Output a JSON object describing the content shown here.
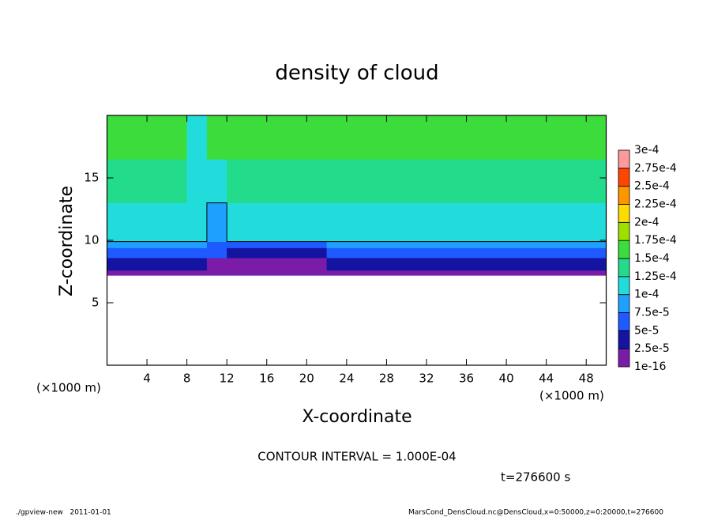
{
  "chart_data": {
    "type": "contourf",
    "title": "density of cloud",
    "xlabel": "X-coordinate",
    "ylabel": "Z-coordinate",
    "x_unit": "(×1000 m)",
    "y_unit": "(×1000 m)",
    "xlim": [
      0,
      50
    ],
    "ylim": [
      0,
      20
    ],
    "xticks": [
      4,
      8,
      12,
      16,
      20,
      24,
      28,
      32,
      36,
      40,
      44,
      48
    ],
    "yticks": [
      5,
      10,
      15
    ],
    "x_bins": [
      0,
      2,
      4,
      6,
      8,
      10,
      12,
      14,
      16,
      18,
      20,
      22,
      24,
      26,
      28,
      30,
      32,
      34,
      36,
      38,
      40,
      42,
      44,
      46,
      48,
      50
    ],
    "z_bins": [
      7.2,
      7.6,
      8.6,
      9.4,
      9.9,
      13,
      16.5,
      20
    ],
    "values": [
      [
        1e-05,
        1e-05,
        1e-05,
        1e-05,
        1e-05,
        1e-05,
        1e-05,
        1e-05,
        1e-05,
        1e-05,
        1e-05,
        1e-05,
        1e-05,
        1e-05,
        1e-05,
        1e-05,
        1e-05,
        1e-05,
        1e-05,
        1e-05,
        1e-05,
        1e-05,
        1e-05,
        1e-05,
        1e-05
      ],
      [
        3.5e-05,
        3.5e-05,
        3.5e-05,
        3.5e-05,
        3.5e-05,
        1e-05,
        1e-05,
        1e-05,
        1e-05,
        1e-05,
        1e-05,
        3.5e-05,
        3.5e-05,
        3.5e-05,
        3.5e-05,
        3.5e-05,
        3.5e-05,
        3.5e-05,
        3.5e-05,
        3.5e-05,
        3.5e-05,
        3.5e-05,
        3.5e-05,
        3.5e-05,
        3.5e-05
      ],
      [
        6e-05,
        6e-05,
        6e-05,
        6e-05,
        6e-05,
        6e-05,
        3e-05,
        3e-05,
        3e-05,
        3e-05,
        3e-05,
        6e-05,
        6e-05,
        6e-05,
        6e-05,
        6e-05,
        6e-05,
        6e-05,
        6e-05,
        6e-05,
        6e-05,
        6e-05,
        6e-05,
        6e-05,
        6e-05
      ],
      [
        8.5e-05,
        8.5e-05,
        8.5e-05,
        8.5e-05,
        8.5e-05,
        6e-05,
        6e-05,
        6e-05,
        6e-05,
        6e-05,
        6e-05,
        8.5e-05,
        8.5e-05,
        8.5e-05,
        8.5e-05,
        8.5e-05,
        8.5e-05,
        8.5e-05,
        8.5e-05,
        8.5e-05,
        8.5e-05,
        8.5e-05,
        8.5e-05,
        8.5e-05,
        8.5e-05
      ],
      [
        0.00012,
        0.00012,
        0.00012,
        0.00012,
        0.00012,
        8.5e-05,
        0.00012,
        0.00012,
        0.00012,
        0.00012,
        0.00012,
        0.00012,
        0.00012,
        0.00012,
        0.00012,
        0.00012,
        0.00012,
        0.00012,
        0.00012,
        0.00012,
        0.00012,
        0.00012,
        0.00012,
        0.00012,
        0.00012
      ],
      [
        0.00014,
        0.00014,
        0.00014,
        0.00014,
        0.000115,
        0.00012,
        0.00014,
        0.00014,
        0.00014,
        0.00014,
        0.00014,
        0.00014,
        0.00014,
        0.00014,
        0.00014,
        0.00014,
        0.00014,
        0.00014,
        0.00014,
        0.00014,
        0.00014,
        0.00014,
        0.00014,
        0.00014,
        0.00014
      ],
      [
        0.00016,
        0.00016,
        0.00016,
        0.00016,
        0.00012,
        0.00016,
        0.00016,
        0.00016,
        0.00016,
        0.00016,
        0.00016,
        0.00016,
        0.00016,
        0.00016,
        0.00016,
        0.00016,
        0.00016,
        0.00016,
        0.00016,
        0.00016,
        0.00016,
        0.00016,
        0.00016,
        0.00016,
        0.00016
      ]
    ],
    "contour_levels": [
      0.0001
    ],
    "levels": [
      {
        "value": 1e-16,
        "label": "1e-16"
      },
      {
        "value": 2.5e-05,
        "label": "2.5e-5"
      },
      {
        "value": 5e-05,
        "label": "5e-5"
      },
      {
        "value": 7.5e-05,
        "label": "7.5e-5"
      },
      {
        "value": 0.0001,
        "label": "1e-4"
      },
      {
        "value": 0.000125,
        "label": "1.25e-4"
      },
      {
        "value": 0.00015,
        "label": "1.5e-4"
      },
      {
        "value": 0.000175,
        "label": "1.75e-4"
      },
      {
        "value": 0.0002,
        "label": "2e-4"
      },
      {
        "value": 0.000225,
        "label": "2.25e-4"
      },
      {
        "value": 0.00025,
        "label": "2.5e-4"
      },
      {
        "value": 0.000275,
        "label": "2.75e-4"
      },
      {
        "value": 0.0003,
        "label": "3e-4"
      }
    ],
    "colors": [
      "#7a1ca8",
      "#1414a0",
      "#1e5aff",
      "#1ea0ff",
      "#22dcdc",
      "#22dc8c",
      "#3cdc3c",
      "#9ee000",
      "#ffdc00",
      "#ff9600",
      "#ff4600",
      "#ff9a9a"
    ],
    "contour_interval": "CONTOUR INTERVAL = 1.000E-04",
    "time_label": "t=276600 s",
    "footer_left": "./gpview-new   2011-01-01",
    "footer_right": "MarsCond_DensCloud.nc@DensCloud,x=0:50000,z=0:20000,t=276600"
  }
}
